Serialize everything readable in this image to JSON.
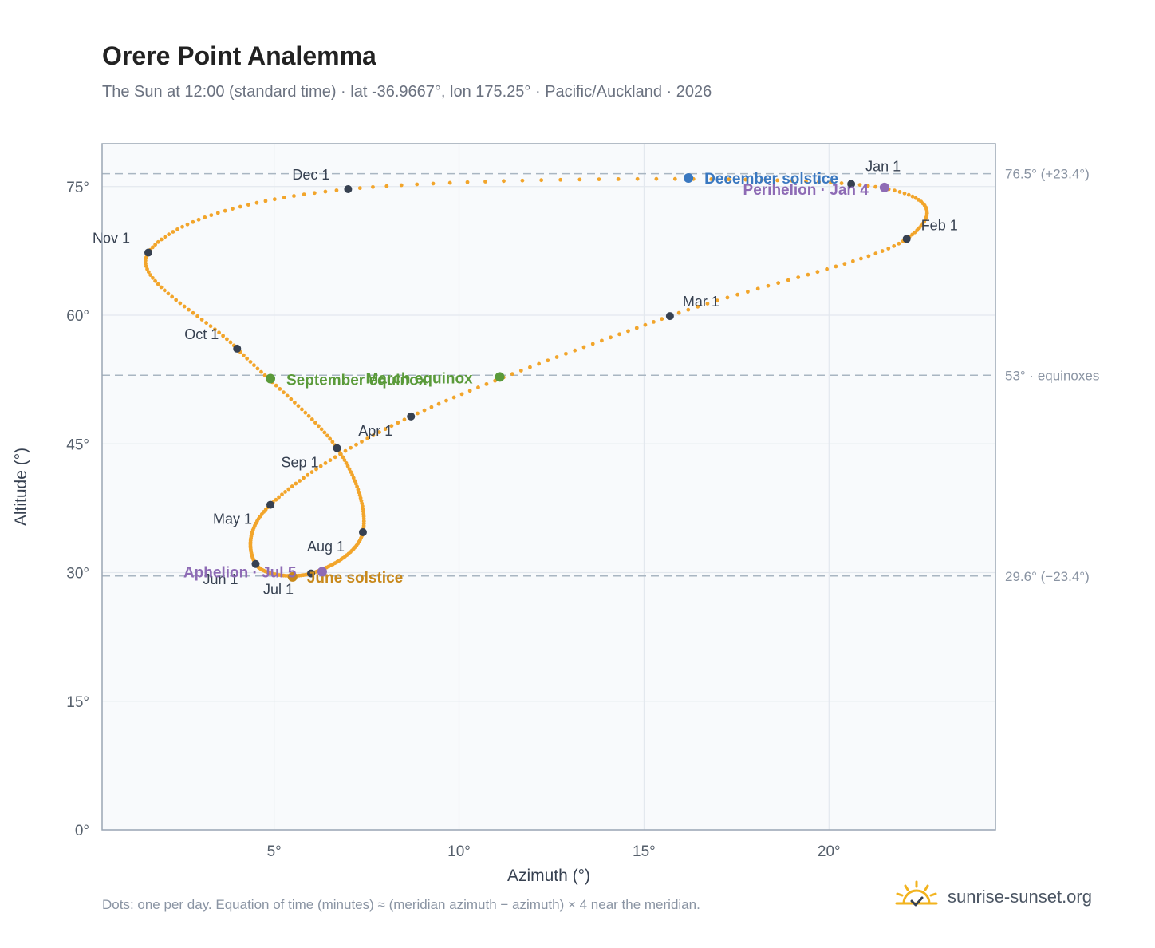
{
  "header": {
    "title": "Orere Point Analemma",
    "subtitle": "The Sun at 12:00 (standard time) · lat -36.9667°, lon 175.25° · Pacific/Auckland · 2026"
  },
  "footer": {
    "note": "Dots: one per day. Equation of time (minutes) ≈ (meridian azimuth − azimuth) × 4 near the meridian.",
    "brand": "sunrise-sunset.org",
    "brand_icon": "sun-icon"
  },
  "colors": {
    "path": "#f2a52b",
    "month_dot": "#374151",
    "december_solstice": "#3a78c0",
    "june_solstice": "#c8881a",
    "equinox": "#5a9a3a",
    "perihelion_aphelion": "#8e6bb5",
    "reference_line": "#a9b6c2",
    "plot_background": "#f8fafc",
    "frame": "#9aa6b4"
  },
  "chart_data": {
    "type": "scatter",
    "xlabel": "Azimuth (°)",
    "ylabel": "Altitude (°)",
    "xlim": [
      0.35,
      24.5
    ],
    "ylim": [
      0,
      80
    ],
    "xticks": [
      5,
      10,
      15,
      20
    ],
    "yticks": [
      0,
      15,
      30,
      45,
      60,
      75
    ],
    "xtick_labels": [
      "5°",
      "10°",
      "15°",
      "20°"
    ],
    "ytick_labels": [
      "0°",
      "15°",
      "30°",
      "45°",
      "60°",
      "75°"
    ],
    "grid": true,
    "reference_lines": [
      {
        "y": 76.5,
        "label": "76.5° (+23.4°)"
      },
      {
        "y": 53,
        "label": "53° · equinoxes"
      },
      {
        "y": 29.6,
        "label": "29.6° (−23.4°)"
      }
    ],
    "month_markers": [
      {
        "label": "Jan 1",
        "x": 20.6,
        "y": 75.3
      },
      {
        "label": "Feb 1",
        "x": 22.1,
        "y": 68.9
      },
      {
        "label": "Mar 1",
        "x": 15.7,
        "y": 59.9
      },
      {
        "label": "Apr 1",
        "x": 8.7,
        "y": 48.2
      },
      {
        "label": "May 1",
        "x": 4.9,
        "y": 37.9
      },
      {
        "label": "Jun 1",
        "x": 4.5,
        "y": 31.0
      },
      {
        "label": "Jul 1",
        "x": 6.0,
        "y": 29.9
      },
      {
        "label": "Aug 1",
        "x": 7.4,
        "y": 34.7
      },
      {
        "label": "Sep 1",
        "x": 6.7,
        "y": 44.5
      },
      {
        "label": "Oct 1",
        "x": 4.0,
        "y": 56.1
      },
      {
        "label": "Nov 1",
        "x": 1.6,
        "y": 67.3
      },
      {
        "label": "Dec 1",
        "x": 7.0,
        "y": 74.7
      }
    ],
    "events": [
      {
        "label": "December solstice",
        "x": 16.2,
        "y": 76.0,
        "color": "#3a78c0"
      },
      {
        "label": "Perihelion · Jan 4",
        "x": 21.5,
        "y": 74.9,
        "color": "#8e6bb5"
      },
      {
        "label": "March equinox",
        "x": 11.1,
        "y": 52.8,
        "color": "#5a9a3a"
      },
      {
        "label": "September equinox",
        "x": 4.9,
        "y": 52.6,
        "color": "#5a9a3a"
      },
      {
        "label": "June solstice",
        "x": 5.5,
        "y": 29.5,
        "color": "#c8881a"
      },
      {
        "label": "Aphelion · Jul 5",
        "x": 6.3,
        "y": 30.1,
        "color": "#8e6bb5"
      }
    ]
  }
}
